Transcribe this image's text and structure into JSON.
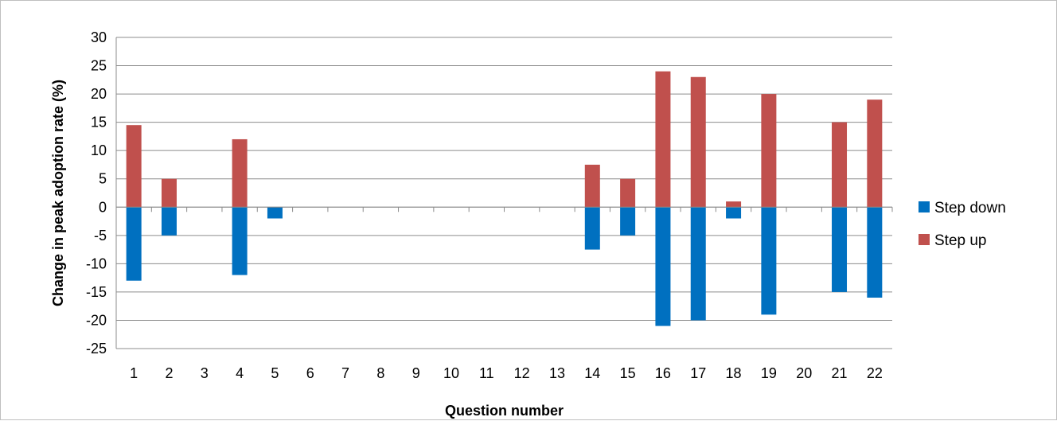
{
  "chart_data": {
    "type": "bar",
    "stacked": true,
    "categories": [
      "1",
      "2",
      "3",
      "4",
      "5",
      "6",
      "7",
      "8",
      "9",
      "10",
      "11",
      "12",
      "13",
      "14",
      "15",
      "16",
      "17",
      "18",
      "19",
      "20",
      "21",
      "22"
    ],
    "series": [
      {
        "name": "Step down",
        "color": "#0070C0",
        "values": [
          -13,
          -5,
          0,
          -12,
          -2,
          0,
          0,
          0,
          0,
          0,
          0,
          0,
          0,
          -7.5,
          -5,
          -21,
          -20,
          -2,
          -19,
          0,
          -15,
          -16
        ]
      },
      {
        "name": "Step up",
        "color": "#C0504D",
        "values": [
          14.5,
          5,
          0,
          12,
          0,
          0,
          0,
          0,
          0,
          0,
          0,
          0,
          0,
          7.5,
          5,
          24,
          23,
          1,
          20,
          0,
          15,
          19
        ]
      }
    ],
    "xlabel": "Question number",
    "ylabel": "Change in peak adoption rate (%)",
    "ylim": [
      -25,
      30
    ],
    "yticks": [
      30,
      25,
      20,
      15,
      10,
      5,
      0,
      -5,
      -10,
      -15,
      -20,
      -25
    ],
    "grid": true,
    "legend_position": "right"
  }
}
